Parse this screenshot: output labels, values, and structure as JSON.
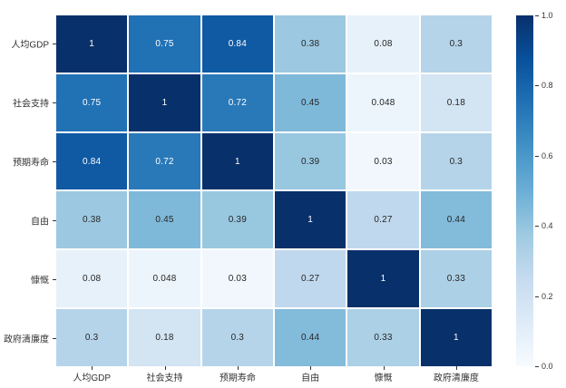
{
  "chart_data": {
    "type": "heatmap",
    "title": "",
    "xlabel": "",
    "ylabel": "",
    "categories": [
      "人均GDP",
      "社会支持",
      "预期寿命",
      "自由",
      "慷慨",
      "政府清廉度"
    ],
    "matrix": [
      [
        1,
        0.75,
        0.84,
        0.38,
        0.08,
        0.3
      ],
      [
        0.75,
        1,
        0.72,
        0.45,
        0.048,
        0.18
      ],
      [
        0.84,
        0.72,
        1,
        0.39,
        0.03,
        0.3
      ],
      [
        0.38,
        0.45,
        0.39,
        1,
        0.27,
        0.44
      ],
      [
        0.08,
        0.048,
        0.03,
        0.27,
        1,
        0.33
      ],
      [
        0.3,
        0.18,
        0.3,
        0.44,
        0.33,
        1
      ]
    ],
    "vmin": 0,
    "vmax": 1,
    "grid": false,
    "annotations": true,
    "legend_position": "right",
    "colorbar_ticks": [
      "1.0",
      "0.8",
      "0.6",
      "0.4",
      "0.2",
      "0.0"
    ],
    "colorbar_tick_values": [
      1.0,
      0.8,
      0.6,
      0.4,
      0.2,
      0.0
    ],
    "colormap": "Blues",
    "colormap_stops": [
      [
        0.0,
        247,
        251,
        255
      ],
      [
        0.125,
        222,
        235,
        247
      ],
      [
        0.25,
        198,
        219,
        239
      ],
      [
        0.375,
        158,
        202,
        225
      ],
      [
        0.5,
        107,
        174,
        214
      ],
      [
        0.625,
        66,
        146,
        198
      ],
      [
        0.75,
        33,
        113,
        181
      ],
      [
        0.875,
        8,
        81,
        156
      ],
      [
        1.0,
        8,
        48,
        107
      ]
    ]
  },
  "colors": {
    "background": "#ffffff",
    "annotation_dark": "#262626",
    "annotation_light": "#ffffff",
    "axis_label": "#333333",
    "cell_gap": "#ffffff"
  }
}
